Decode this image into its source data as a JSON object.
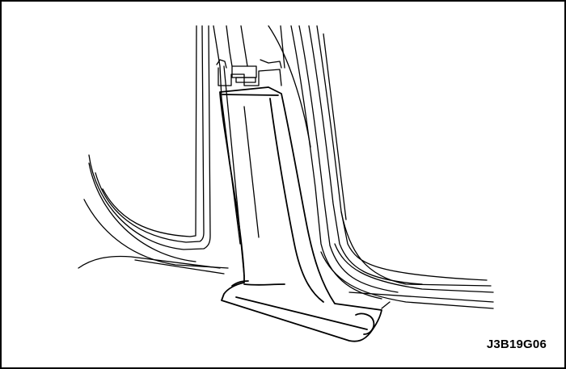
{
  "figure": {
    "code": "J3B19G06"
  },
  "colors": {
    "line": "#000000",
    "background": "#ffffff"
  }
}
